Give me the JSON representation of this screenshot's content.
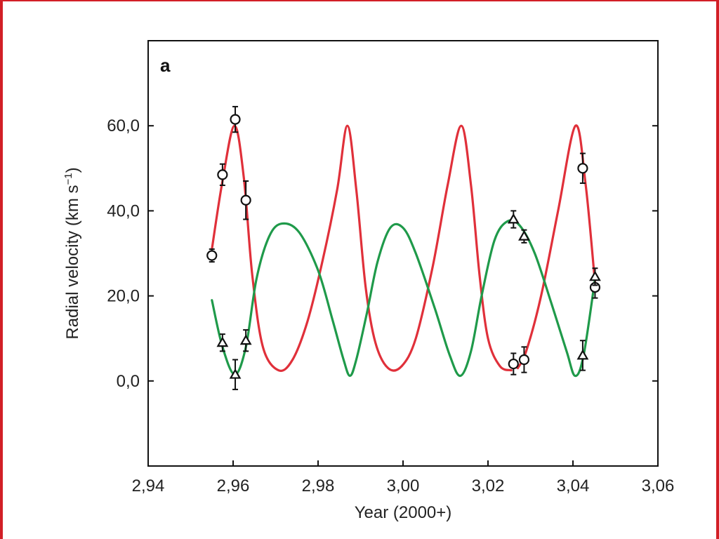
{
  "panel_label": "a",
  "colors": {
    "frame": "#d21f26",
    "curve_red": "#e0303a",
    "curve_green": "#1f9a4a",
    "marker": "#111111"
  },
  "chart_data": {
    "type": "scatter",
    "xlabel": "Year (2000+)",
    "ylabel_main": "Radial velocity (km s",
    "ylabel_sup": "−1",
    "ylabel_close": ")",
    "xlim": [
      2.94,
      3.06
    ],
    "ylim": [
      -20,
      80
    ],
    "x_ticks": [
      2.94,
      2.96,
      2.98,
      3.0,
      3.02,
      3.04,
      3.06
    ],
    "x_tick_labels": [
      "2,94",
      "2,96",
      "2,98",
      "3,00",
      "3,02",
      "3,04",
      "3,06"
    ],
    "y_ticks": [
      0,
      20,
      40,
      60
    ],
    "y_tick_labels": [
      "0,0",
      "20,0",
      "40,0",
      "60,0"
    ],
    "grid": false,
    "legend": "none",
    "series": [
      {
        "marker": "circle",
        "color": "#111111",
        "points": [
          {
            "x": 2.955,
            "y": 29.5,
            "err": 1.5
          },
          {
            "x": 2.9575,
            "y": 48.5,
            "err": 2.5
          },
          {
            "x": 2.9605,
            "y": 61.5,
            "err": 3.0
          },
          {
            "x": 2.963,
            "y": 42.5,
            "err": 4.5
          },
          {
            "x": 3.026,
            "y": 4.0,
            "err": 2.5
          },
          {
            "x": 3.0285,
            "y": 5.0,
            "err": 3.0
          },
          {
            "x": 3.0423,
            "y": 50.0,
            "err": 3.5
          },
          {
            "x": 3.0452,
            "y": 22.0,
            "err": 2.5
          }
        ]
      },
      {
        "marker": "triangle",
        "color": "#111111",
        "points": [
          {
            "x": 2.9575,
            "y": 9.0,
            "err": 2.0
          },
          {
            "x": 2.9605,
            "y": 1.5,
            "err": 3.5
          },
          {
            "x": 2.963,
            "y": 9.5,
            "err": 2.5
          },
          {
            "x": 3.026,
            "y": 38.0,
            "err": 2.0
          },
          {
            "x": 3.0285,
            "y": 34.0,
            "err": 1.5
          },
          {
            "x": 3.0423,
            "y": 6.0,
            "err": 3.5
          },
          {
            "x": 3.0452,
            "y": 24.5,
            "err": 2.0
          }
        ]
      }
    ],
    "fit_curves": [
      {
        "color": "#e0303a",
        "segments": [
          [
            [
              2.955,
              31
            ],
            [
              2.9575,
              47
            ],
            [
              2.9603,
              60
            ],
            [
              2.9625,
              48
            ],
            [
              2.9645,
              25
            ],
            [
              2.967,
              8
            ],
            [
              2.9707,
              2.5
            ],
            [
              2.974,
              5
            ],
            [
              2.9775,
              14
            ],
            [
              2.981,
              28
            ],
            [
              2.9845,
              45
            ],
            [
              2.9869,
              60
            ],
            [
              2.989,
              45
            ],
            [
              2.9912,
              22
            ],
            [
              2.9935,
              9
            ],
            [
              2.9965,
              3
            ],
            [
              2.9997,
              3.5
            ],
            [
              3.003,
              10
            ],
            [
              3.007,
              27
            ],
            [
              3.0105,
              46
            ],
            [
              3.0137,
              60
            ],
            [
              3.016,
              46
            ],
            [
              3.018,
              25
            ],
            [
              3.02,
              10
            ],
            [
              3.0228,
              3.5
            ],
            [
              3.0255,
              2.5
            ]
          ],
          [
            [
              3.027,
              3
            ],
            [
              3.029,
              7
            ],
            [
              3.0325,
              20
            ],
            [
              3.0365,
              40
            ],
            [
              3.0406,
              60
            ],
            [
              3.043,
              46
            ],
            [
              3.0452,
              23
            ]
          ]
        ]
      },
      {
        "color": "#1f9a4a",
        "segments": [
          [
            [
              2.955,
              19
            ],
            [
              2.9575,
              8
            ],
            [
              2.9604,
              1.5
            ],
            [
              2.963,
              8
            ],
            [
              2.9655,
              24
            ],
            [
              2.9685,
              34
            ],
            [
              2.9715,
              37
            ],
            [
              2.9755,
              35
            ],
            [
              2.98,
              26
            ],
            [
              2.9835,
              14
            ],
            [
              2.986,
              5
            ],
            [
              2.9875,
              1.2
            ],
            [
              2.989,
              5
            ],
            [
              2.9915,
              16
            ],
            [
              2.994,
              28
            ],
            [
              2.997,
              36
            ],
            [
              3.0,
              36
            ],
            [
              3.003,
              30
            ],
            [
              3.0075,
              17
            ],
            [
              3.011,
              6
            ],
            [
              3.0135,
              1.2
            ],
            [
              3.016,
              7
            ],
            [
              3.0185,
              20
            ],
            [
              3.0215,
              33
            ],
            [
              3.0245,
              37.5
            ],
            [
              3.0275,
              36.5
            ],
            [
              3.031,
              30
            ],
            [
              3.035,
              18
            ],
            [
              3.0385,
              7
            ],
            [
              3.0405,
              1.2
            ],
            [
              3.0425,
              6
            ],
            [
              3.0452,
              24
            ]
          ]
        ]
      }
    ]
  }
}
